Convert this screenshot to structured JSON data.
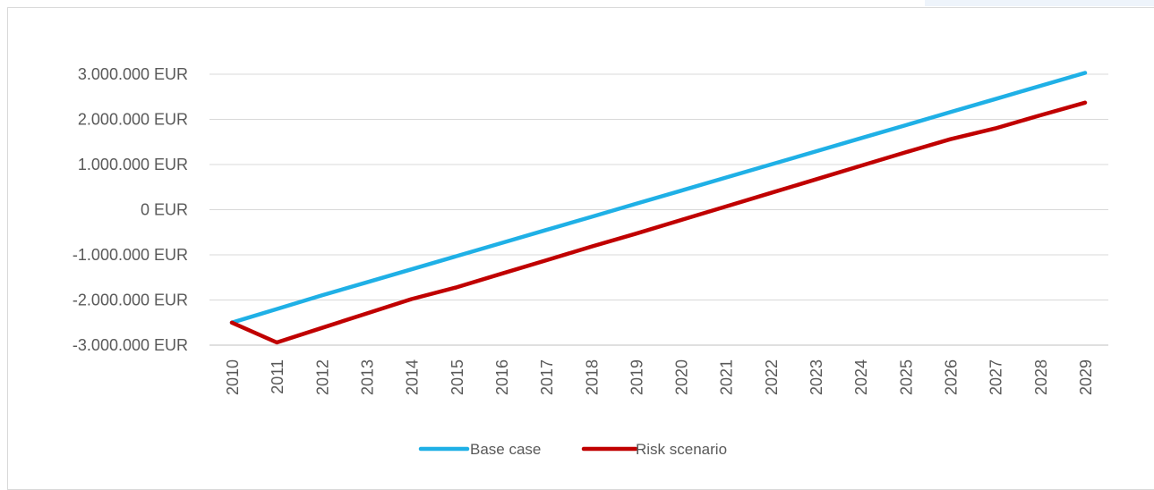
{
  "chart_data": {
    "type": "line",
    "title": "",
    "xlabel": "",
    "ylabel": "",
    "x": [
      2010,
      2011,
      2012,
      2013,
      2014,
      2015,
      2016,
      2017,
      2018,
      2019,
      2020,
      2021,
      2022,
      2023,
      2024,
      2025,
      2026,
      2027,
      2028,
      2029
    ],
    "x_tick_labels": [
      "2010",
      "2011",
      "2012",
      "2013",
      "2014",
      "2015",
      "2016",
      "2017",
      "2018",
      "2019",
      "2020",
      "2021",
      "2022",
      "2023",
      "2024",
      "2025",
      "2026",
      "2027",
      "2028",
      "2029"
    ],
    "y_ticks": [
      3000000,
      2000000,
      1000000,
      0,
      -1000000,
      -2000000,
      -3000000
    ],
    "y_tick_labels": [
      "3.000.000 EUR",
      "2.000.000 EUR",
      "1.000.000 EUR",
      "0 EUR",
      "-1.000.000 EUR",
      "-2.000.000 EUR",
      "-3.000.000 EUR"
    ],
    "ylim": [
      -3000000,
      3000000
    ],
    "grid": true,
    "legend_position": "bottom",
    "series": [
      {
        "name": "Base case",
        "color": "#1fb0e6",
        "values": [
          -2500000,
          -2200000,
          -1900000,
          -1610000,
          -1320000,
          -1030000,
          -740000,
          -450000,
          -160000,
          130000,
          420000,
          710000,
          1000000,
          1290000,
          1580000,
          1870000,
          2160000,
          2450000,
          2740000,
          3030000
        ]
      },
      {
        "name": "Risk scenario",
        "color": "#c00000",
        "values": [
          -2500000,
          -2940000,
          -2620000,
          -2300000,
          -1980000,
          -1720000,
          -1420000,
          -1120000,
          -820000,
          -530000,
          -230000,
          70000,
          370000,
          670000,
          970000,
          1270000,
          1560000,
          1800000,
          2090000,
          2370000
        ]
      }
    ]
  }
}
